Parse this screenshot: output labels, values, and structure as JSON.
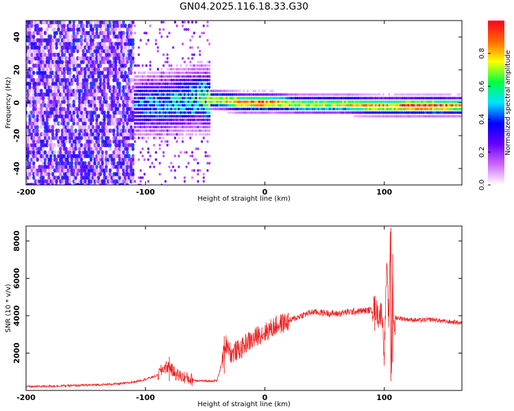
{
  "title": "GN04.2025.116.18.33.G30",
  "chart_data": [
    {
      "type": "heatmap",
      "xlabel": "Height of straight line (km)",
      "ylabel": "Frequency (Hz)",
      "xlim": [
        -200,
        165
      ],
      "ylim": [
        -50,
        50
      ],
      "xticks": [
        -200,
        -100,
        0,
        100
      ],
      "yticks": [
        -40,
        -20,
        0,
        20,
        40
      ],
      "colorbar": {
        "label": "Normalized spectral amplitude",
        "range": [
          0,
          1
        ],
        "ticks": [
          0.0,
          0.2,
          0.4,
          0.6,
          0.8
        ],
        "tick_labels": [
          "0.0",
          "0.2",
          "0.4",
          "0.6",
          "0.8"
        ],
        "colormap": [
          "#ffffff",
          "#cc66ff",
          "#6600ff",
          "#0000ff",
          "#00e5ff",
          "#00ff44",
          "#ffff00",
          "#ff6600",
          "#ff0022"
        ]
      },
      "ridge": {
        "x": [
          -200,
          -150,
          -110,
          -90,
          -70,
          -55,
          -45,
          -30,
          -20,
          -10,
          0,
          10,
          30,
          50,
          70,
          90,
          100,
          120,
          140,
          165
        ],
        "center_hz": [
          -3,
          -4,
          -2,
          -1,
          1,
          3,
          2,
          1,
          0,
          0,
          0,
          0,
          -1,
          -1,
          -1,
          -2,
          -2,
          -2,
          -2,
          -2
        ],
        "peak_amplitude": [
          0.25,
          0.3,
          0.45,
          0.5,
          0.55,
          0.6,
          0.7,
          0.8,
          0.9,
          0.85,
          0.9,
          0.8,
          0.7,
          0.72,
          0.75,
          0.85,
          0.8,
          0.92,
          0.95,
          0.8
        ]
      }
    },
    {
      "type": "line",
      "xlabel": "Height of straight line (km)",
      "ylabel": "SNR (10 * v/v)",
      "xlim": [
        -200,
        165
      ],
      "ylim": [
        0,
        8800
      ],
      "xticks": [
        -200,
        -100,
        0,
        100
      ],
      "yticks": [
        2000,
        4000,
        6000,
        8000
      ],
      "color": "#ee2222",
      "x": [
        -200,
        -180,
        -160,
        -140,
        -120,
        -110,
        -100,
        -90,
        -85,
        -80,
        -78,
        -75,
        -70,
        -65,
        -60,
        -50,
        -40,
        -36,
        -34,
        -32,
        -30,
        -28,
        -25,
        -20,
        -15,
        -10,
        -5,
        0,
        5,
        10,
        20,
        25,
        30,
        35,
        40,
        50,
        60,
        70,
        80,
        90,
        92,
        95,
        98,
        100,
        102,
        104,
        105,
        106,
        107,
        108,
        110,
        120,
        130,
        140,
        150,
        160,
        165
      ],
      "y": [
        200,
        230,
        260,
        300,
        360,
        450,
        600,
        800,
        1200,
        1300,
        1100,
        900,
        750,
        650,
        550,
        500,
        520,
        1500,
        2100,
        2600,
        2300,
        1900,
        2100,
        2200,
        2600,
        2700,
        3000,
        3100,
        3300,
        3500,
        3700,
        3850,
        4000,
        4100,
        4200,
        4150,
        4100,
        4200,
        4250,
        4300,
        4500,
        4000,
        4200,
        2000,
        6500,
        3500,
        8700,
        500,
        7000,
        3000,
        3900,
        3800,
        3750,
        3800,
        3700,
        3650,
        3600
      ],
      "spikes": [
        {
          "x": 92,
          "y": [
            3200,
            5000
          ]
        },
        {
          "x": 105.5,
          "y": [
            500,
            8700
          ]
        },
        {
          "x": 107,
          "y": [
            1500,
            7300
          ]
        },
        {
          "x": -34,
          "y": [
            900,
            2900
          ]
        },
        {
          "x": -80,
          "y": [
            500,
            1800
          ]
        }
      ]
    }
  ]
}
